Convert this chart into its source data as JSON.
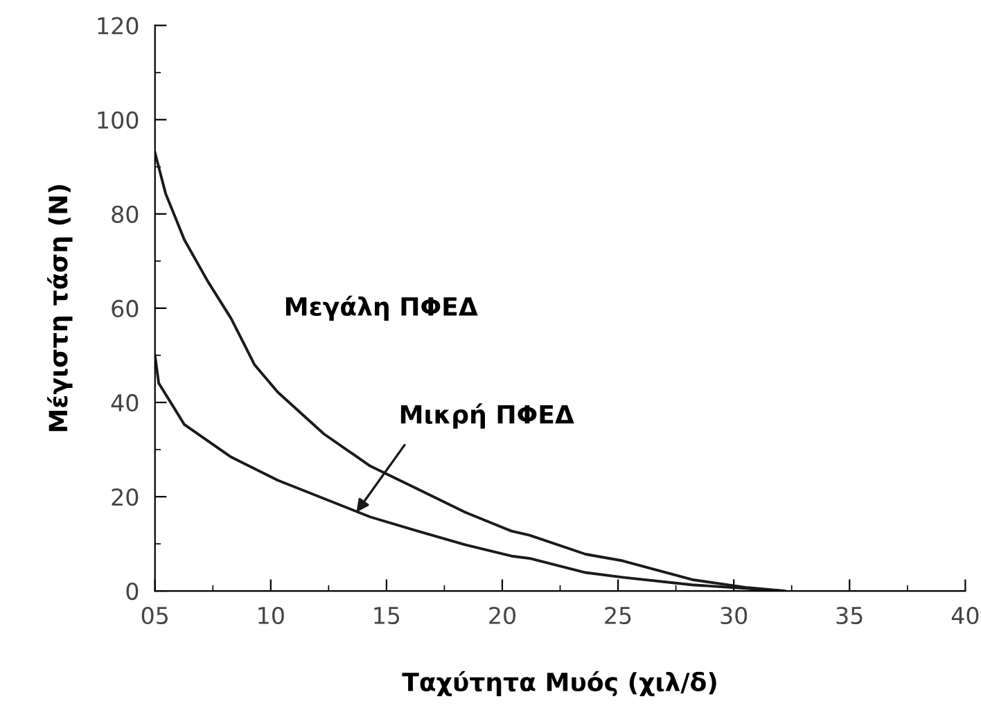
{
  "chart_data": {
    "type": "line",
    "xlabel": "Ταχύτητα Μυός (χιλ/δ)",
    "ylabel": "Μέγιστη τάση (N)",
    "xlim": [
      5,
      40
    ],
    "ylim": [
      0,
      120
    ],
    "xticks": [
      {
        "value": 5,
        "label": "05"
      },
      10,
      15,
      20,
      25,
      30,
      35,
      40
    ],
    "yticks": [
      0,
      20,
      40,
      60,
      80,
      100,
      120
    ],
    "grid": false,
    "legend": false,
    "marker": "none",
    "line_style": "solid",
    "series": [
      {
        "color": "#1a1a1a",
        "x": [
          5,
          5.46,
          6.27,
          7.28,
          8.29,
          9.3,
          10.3,
          12.3,
          14.3,
          16.35,
          18.4,
          20.4,
          21.2,
          23.6,
          25.2,
          28.2,
          30.6,
          32.2
        ],
        "values": [
          93,
          84.3,
          74.5,
          65.7,
          57.8,
          48,
          42.2,
          33.3,
          26.5,
          21.6,
          16.7,
          12.7,
          11.8,
          7.8,
          6.4,
          2.4,
          0.7,
          0
        ]
      },
      {
        "color": "#1a1a1a",
        "x": [
          5,
          5.16,
          6.27,
          8.29,
          10.3,
          12.3,
          14.3,
          16.35,
          18.4,
          20.4,
          21.2,
          23.6,
          25.2,
          28.2,
          30.6,
          32
        ],
        "values": [
          50,
          44.1,
          35.3,
          28.4,
          23.5,
          19.6,
          15.7,
          12.7,
          9.8,
          7.4,
          6.9,
          3.9,
          2.9,
          1.3,
          0.5,
          0
        ]
      }
    ],
    "annotations": [
      "Μεγάλη ΠΦΕΔ",
      {
        "text": "Μικρή ΠΦΕΔ",
        "x": 13.7,
        "y": 16.7
      }
    ]
  }
}
